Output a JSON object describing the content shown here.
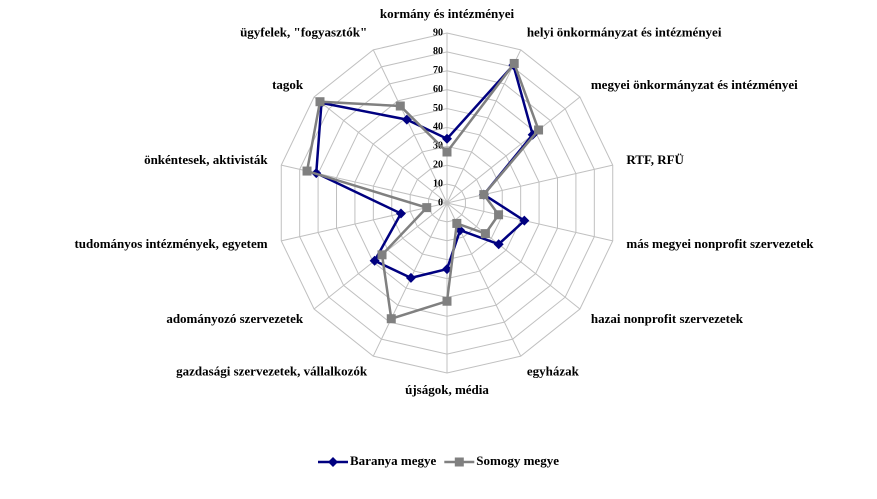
{
  "chart_data": {
    "type": "radar",
    "categories": [
      "kormány és intézményei",
      "helyi önkormányzat és intézményei",
      "megyei önkormányzat és intézményei",
      "RTF, RFÜ",
      "más megyei nonprofit szervezetek",
      "hazai nonprofit szervezetek",
      "egyházak",
      "újságok, média",
      "gazdasági szervezetek, vállalkozók",
      "adományozó szervezetek",
      "tudományos intézmények, egyetem",
      "önkéntesek, aktivisták",
      "tagok",
      "ügyfelek, \"fogyasztók\""
    ],
    "series": [
      {
        "name": "Baranya megye",
        "color": "#000080",
        "marker": "diamond",
        "values": [
          34,
          81,
          58,
          20,
          42,
          35,
          16,
          35,
          44,
          49,
          25,
          71,
          85,
          49
        ]
      },
      {
        "name": "Somogy megye",
        "color": "#808080",
        "marker": "square",
        "values": [
          27,
          82,
          62,
          20,
          28,
          26,
          12,
          52,
          68,
          44,
          11,
          76,
          86,
          57
        ]
      }
    ],
    "ylim": [
      0,
      90
    ],
    "yticks": [
      0,
      10,
      20,
      30,
      40,
      50,
      60,
      70,
      80,
      90
    ],
    "grid": true,
    "legend": "bottom"
  }
}
